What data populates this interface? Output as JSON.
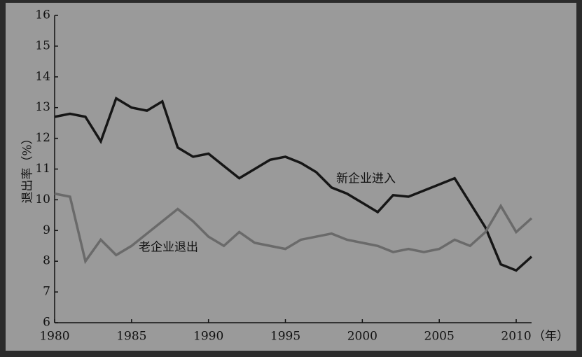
{
  "chart_data": {
    "type": "line",
    "y_label": "退出率（%）",
    "x_label": "（年）",
    "x": [
      1980,
      1981,
      1982,
      1983,
      1984,
      1985,
      1986,
      1987,
      1988,
      1989,
      1990,
      1991,
      1992,
      1993,
      1994,
      1995,
      1996,
      1997,
      1998,
      1999,
      2000,
      2001,
      2002,
      2003,
      2004,
      2005,
      2006,
      2007,
      2008,
      2009,
      2010,
      2011
    ],
    "series": [
      {
        "name": "新企业进入",
        "color": "#161616",
        "values": [
          12.7,
          12.8,
          12.7,
          11.9,
          13.3,
          13.0,
          12.9,
          13.2,
          11.7,
          11.4,
          11.5,
          11.1,
          10.7,
          11.0,
          11.3,
          11.4,
          11.2,
          10.9,
          10.4,
          10.2,
          9.9,
          9.6,
          10.15,
          10.1,
          10.3,
          10.5,
          10.7,
          9.9,
          9.1,
          7.9,
          7.7,
          8.15
        ]
      },
      {
        "name": "老企业退出",
        "color": "#6a6a6a",
        "values": [
          10.2,
          10.1,
          8.0,
          8.7,
          8.2,
          8.5,
          8.9,
          9.3,
          9.7,
          9.3,
          8.8,
          8.5,
          8.95,
          8.6,
          8.5,
          8.4,
          8.7,
          8.8,
          8.9,
          8.7,
          8.6,
          8.5,
          8.3,
          8.4,
          8.3,
          8.4,
          8.7,
          8.5,
          8.95,
          9.8,
          8.95,
          9.4
        ]
      }
    ],
    "xlim": [
      1980,
      2011
    ],
    "xticks": [
      1980,
      1985,
      1990,
      1995,
      2000,
      2005,
      2010
    ],
    "ylim": [
      6,
      16
    ],
    "yticks": [
      6,
      7,
      8,
      9,
      10,
      11,
      12,
      13,
      14,
      15,
      16
    ]
  }
}
